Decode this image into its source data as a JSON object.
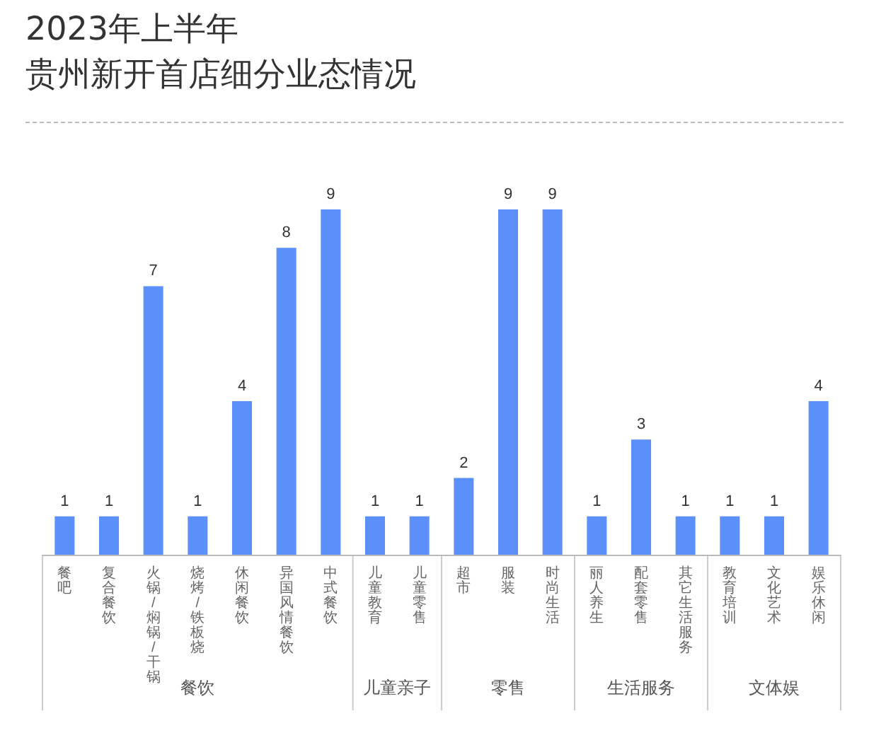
{
  "chart_data": {
    "type": "bar",
    "title": "2023年上半年",
    "subtitle": "贵州新开首店细分业态情况",
    "categories": [
      "餐吧",
      "复合餐饮",
      "火锅/焖锅/干锅",
      "烧烤/铁板烧",
      "休闲餐饮",
      "异国风情餐饮",
      "中式餐饮",
      "儿童教育",
      "儿童零售",
      "超市",
      "服装",
      "时尚生活",
      "丽人养生",
      "配套零售",
      "其它生活服务",
      "教育培训",
      "文化艺术",
      "娱乐休闲"
    ],
    "values": [
      1,
      1,
      7,
      1,
      4,
      8,
      9,
      1,
      1,
      2,
      9,
      9,
      1,
      3,
      1,
      1,
      1,
      4
    ],
    "color": "#5b8ff9",
    "data_labels": true,
    "annotations": [
      "餐饮",
      "儿童亲子",
      "零售",
      "生活服务",
      "文体娱"
    ]
  }
}
